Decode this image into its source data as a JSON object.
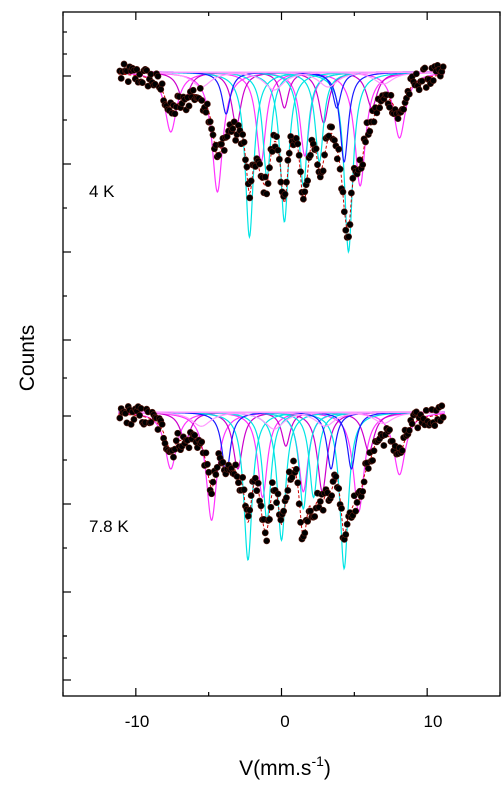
{
  "chart_data": {
    "type": "scatter",
    "title": "",
    "xlabel": "V(mm.s",
    "xlabel_superscript": "-1",
    "xlabel_suffix": ")",
    "ylabel": "Counts",
    "xlim": [
      -15,
      15
    ],
    "x_ticks": [
      -10,
      0,
      10
    ],
    "x_tick_labels": [
      "-10",
      "0",
      "10"
    ],
    "grid": false,
    "legend": "none",
    "panels": [
      {
        "label": "4 K",
        "baseline": 1.0,
        "fit_components": [
          {
            "color": "#ff33ff",
            "lines": [
              {
                "center": -7.6,
                "width": 0.5,
                "depth": 0.2
              },
              {
                "center": -4.4,
                "width": 0.45,
                "depth": 0.4
              },
              {
                "center": -1.4,
                "width": 0.4,
                "depth": 0.3
              },
              {
                "center": 1.6,
                "width": 0.4,
                "depth": 0.28
              },
              {
                "center": 5.4,
                "width": 0.45,
                "depth": 0.38
              },
              {
                "center": 8.1,
                "width": 0.5,
                "depth": 0.22
              }
            ]
          },
          {
            "color": "#cc00cc",
            "lines": [
              {
                "center": -6.7,
                "width": 0.45,
                "depth": 0.1
              },
              {
                "center": -3.1,
                "width": 0.4,
                "depth": 0.18
              },
              {
                "center": 0.2,
                "width": 0.35,
                "depth": 0.12
              },
              {
                "center": 2.9,
                "width": 0.4,
                "depth": 0.17
              },
              {
                "center": 6.2,
                "width": 0.45,
                "depth": 0.12
              }
            ]
          },
          {
            "color": "#00e5e5",
            "lines": [
              {
                "center": -2.2,
                "width": 0.35,
                "depth": 0.55
              },
              {
                "center": -1.0,
                "width": 0.35,
                "depth": 0.35
              },
              {
                "center": 0.2,
                "width": 0.35,
                "depth": 0.5
              },
              {
                "center": 1.5,
                "width": 0.35,
                "depth": 0.38
              },
              {
                "center": 2.6,
                "width": 0.35,
                "depth": 0.3
              },
              {
                "center": 4.6,
                "width": 0.35,
                "depth": 0.6
              }
            ]
          },
          {
            "color": "#1a1aff",
            "lines": [
              {
                "center": -3.8,
                "width": 0.35,
                "depth": 0.14
              },
              {
                "center": 3.8,
                "width": 0.35,
                "depth": 0.12
              },
              {
                "center": 4.3,
                "width": 0.35,
                "depth": 0.3
              }
            ]
          },
          {
            "color": "#ff99ff",
            "lines": [
              {
                "center": -5.5,
                "width": 0.8,
                "depth": 0.05
              },
              {
                "center": -0.5,
                "width": 0.8,
                "depth": 0.06
              },
              {
                "center": 3.2,
                "width": 0.8,
                "depth": 0.05
              },
              {
                "center": 7.0,
                "width": 0.8,
                "depth": 0.04
              }
            ]
          }
        ]
      },
      {
        "label": "7.8 K",
        "baseline": 1.0,
        "fit_components": [
          {
            "color": "#ff33ff",
            "lines": [
              {
                "center": -7.6,
                "width": 0.5,
                "depth": 0.2
              },
              {
                "center": -4.8,
                "width": 0.45,
                "depth": 0.38
              },
              {
                "center": -1.3,
                "width": 0.4,
                "depth": 0.3
              },
              {
                "center": 1.5,
                "width": 0.4,
                "depth": 0.28
              },
              {
                "center": 5.3,
                "width": 0.45,
                "depth": 0.35
              },
              {
                "center": 8.1,
                "width": 0.5,
                "depth": 0.22
              }
            ]
          },
          {
            "color": "#cc00cc",
            "lines": [
              {
                "center": -6.6,
                "width": 0.45,
                "depth": 0.1
              },
              {
                "center": -3.0,
                "width": 0.4,
                "depth": 0.2
              },
              {
                "center": 0.3,
                "width": 0.35,
                "depth": 0.12
              },
              {
                "center": 2.8,
                "width": 0.4,
                "depth": 0.28
              },
              {
                "center": 6.0,
                "width": 0.45,
                "depth": 0.14
              }
            ]
          },
          {
            "color": "#00e5e5",
            "lines": [
              {
                "center": -2.3,
                "width": 0.35,
                "depth": 0.52
              },
              {
                "center": -1.0,
                "width": 0.35,
                "depth": 0.38
              },
              {
                "center": 0.0,
                "width": 0.35,
                "depth": 0.45
              },
              {
                "center": 1.5,
                "width": 0.35,
                "depth": 0.34
              },
              {
                "center": 2.2,
                "width": 0.35,
                "depth": 0.3
              },
              {
                "center": 4.3,
                "width": 0.35,
                "depth": 0.55
              }
            ]
          },
          {
            "color": "#1a1aff",
            "lines": [
              {
                "center": -3.8,
                "width": 0.35,
                "depth": 0.22
              },
              {
                "center": 3.4,
                "width": 0.35,
                "depth": 0.2
              },
              {
                "center": 4.8,
                "width": 0.35,
                "depth": 0.2
              }
            ]
          },
          {
            "color": "#ff99ff",
            "lines": [
              {
                "center": -5.5,
                "width": 0.8,
                "depth": 0.05
              },
              {
                "center": -0.5,
                "width": 0.8,
                "depth": 0.06
              },
              {
                "center": 3.0,
                "width": 0.8,
                "depth": 0.05
              },
              {
                "center": 7.0,
                "width": 0.8,
                "depth": 0.04
              }
            ]
          }
        ]
      }
    ],
    "colors": {
      "data_points": "#000000",
      "data_point_edge": "#5a1a10",
      "total_fit": "#cc0000"
    }
  }
}
